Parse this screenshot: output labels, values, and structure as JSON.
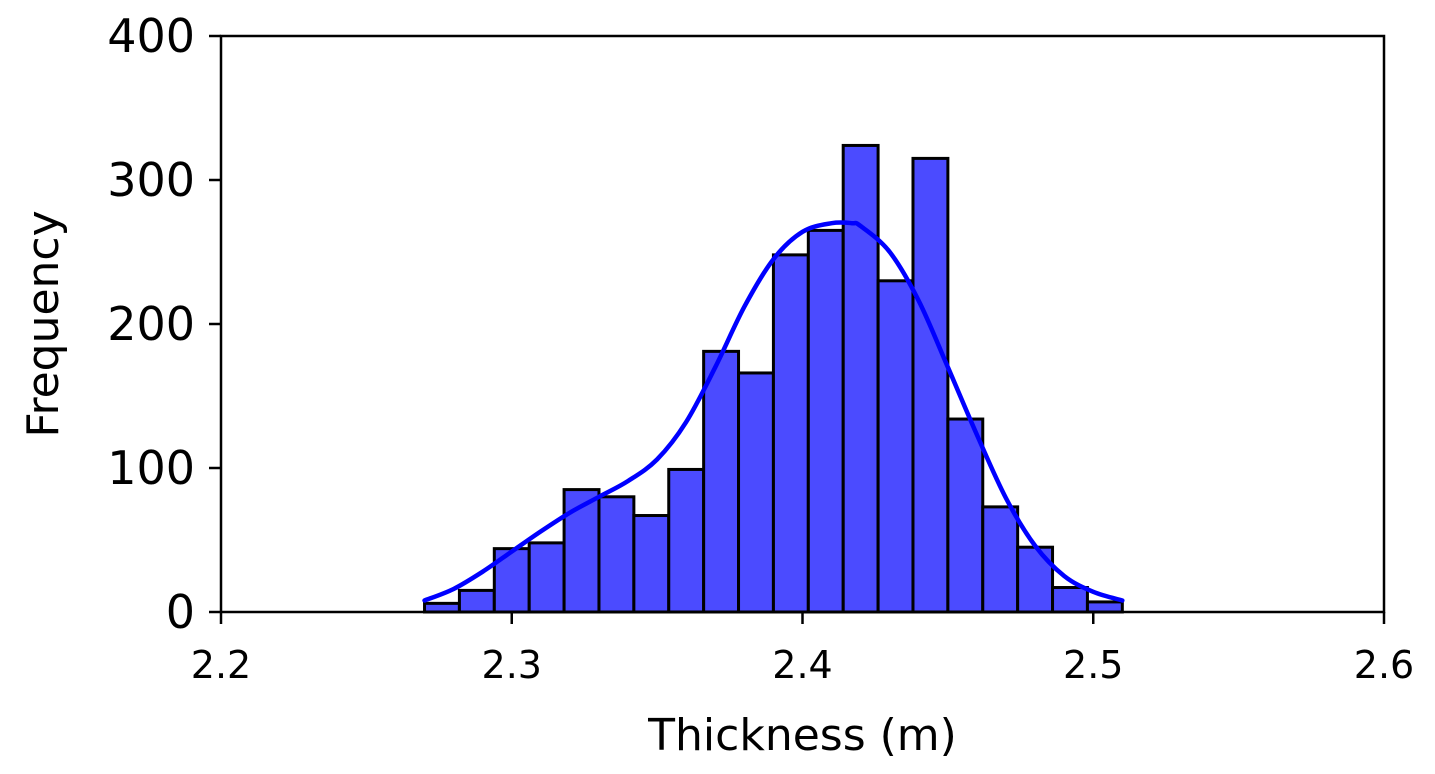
{
  "chart_data": {
    "type": "bar",
    "subtype": "histogram-with-kde",
    "title": "",
    "xlabel": "Thickness (m)",
    "ylabel": "Frequency",
    "xlim": [
      2.2,
      2.6
    ],
    "ylim": [
      0,
      400
    ],
    "xticks": [
      "2.2",
      "2.3",
      "2.4",
      "2.5",
      "2.6"
    ],
    "yticks": [
      "0",
      "100",
      "200",
      "300",
      "400"
    ],
    "grid": false,
    "legend": "none",
    "bar_color": "#4b4bff",
    "bar_edge_color": "#000000",
    "kde_color": "#0000ff",
    "bins": [
      {
        "x0": 2.27,
        "x1": 2.282,
        "count": 6
      },
      {
        "x0": 2.282,
        "x1": 2.294,
        "count": 15
      },
      {
        "x0": 2.294,
        "x1": 2.306,
        "count": 44
      },
      {
        "x0": 2.306,
        "x1": 2.318,
        "count": 48
      },
      {
        "x0": 2.318,
        "x1": 2.33,
        "count": 85
      },
      {
        "x0": 2.33,
        "x1": 2.342,
        "count": 80
      },
      {
        "x0": 2.342,
        "x1": 2.354,
        "count": 67
      },
      {
        "x0": 2.354,
        "x1": 2.366,
        "count": 99
      },
      {
        "x0": 2.366,
        "x1": 2.378,
        "count": 181
      },
      {
        "x0": 2.378,
        "x1": 2.39,
        "count": 166
      },
      {
        "x0": 2.39,
        "x1": 2.402,
        "count": 248
      },
      {
        "x0": 2.402,
        "x1": 2.414,
        "count": 265
      },
      {
        "x0": 2.414,
        "x1": 2.426,
        "count": 324
      },
      {
        "x0": 2.426,
        "x1": 2.438,
        "count": 230
      },
      {
        "x0": 2.438,
        "x1": 2.45,
        "count": 315
      },
      {
        "x0": 2.45,
        "x1": 2.462,
        "count": 134
      },
      {
        "x0": 2.462,
        "x1": 2.474,
        "count": 73
      },
      {
        "x0": 2.474,
        "x1": 2.486,
        "count": 45
      },
      {
        "x0": 2.486,
        "x1": 2.498,
        "count": 17
      },
      {
        "x0": 2.498,
        "x1": 2.51,
        "count": 7
      }
    ],
    "kde_curve": {
      "x": [
        2.27,
        2.28,
        2.29,
        2.3,
        2.31,
        2.32,
        2.33,
        2.34,
        2.35,
        2.36,
        2.37,
        2.38,
        2.39,
        2.4,
        2.41,
        2.417,
        2.42,
        2.43,
        2.44,
        2.45,
        2.46,
        2.47,
        2.48,
        2.49,
        2.5,
        2.51
      ],
      "y": [
        8,
        16,
        28,
        42,
        56,
        69,
        80,
        91,
        106,
        132,
        170,
        212,
        245,
        264,
        270,
        270,
        268,
        250,
        216,
        170,
        123,
        79,
        46,
        25,
        14,
        8
      ]
    }
  }
}
